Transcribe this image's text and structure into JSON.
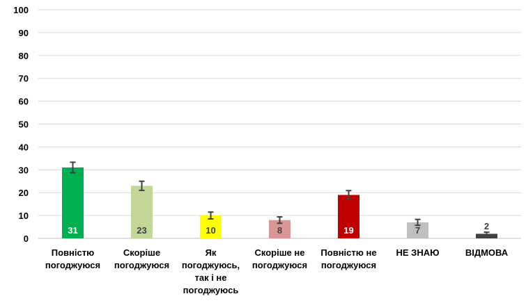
{
  "chart_data": {
    "type": "bar",
    "categories": [
      [
        "Повністю",
        "погоджуюся"
      ],
      [
        "Скоріше",
        "погоджуюся"
      ],
      [
        "Як",
        "погоджуюсь,",
        "так і не",
        "погоджуюсь"
      ],
      [
        "Скоріше не",
        "погоджуюся"
      ],
      [
        "Повністю не",
        "погоджуюся"
      ],
      [
        "НЕ ЗНАЮ"
      ],
      [
        "ВІДМОВА"
      ]
    ],
    "values": [
      31,
      23,
      10,
      8,
      19,
      7,
      2
    ],
    "value_labels": [
      "31",
      "23",
      "10",
      "8",
      "19",
      "7",
      "2"
    ],
    "error": [
      2.3,
      2.0,
      1.5,
      1.4,
      1.9,
      1.3,
      0.7
    ],
    "colors": [
      "#00b050",
      "#c4d79b",
      "#ffff00",
      "#da9694",
      "#c00000",
      "#bfbfbf",
      "#404040"
    ],
    "label_colors": [
      "#ffffff",
      "#404040",
      "#404040",
      "#404040",
      "#ffffff",
      "#404040",
      "#404040"
    ],
    "label_position": [
      "inside",
      "inside",
      "inside",
      "inside",
      "inside",
      "inside",
      "above"
    ],
    "ylim": [
      0,
      100
    ],
    "yticks": [
      0,
      10,
      20,
      30,
      40,
      50,
      60,
      70,
      80,
      90,
      100
    ],
    "grid": true,
    "title": "",
    "xlabel": "",
    "ylabel": ""
  }
}
